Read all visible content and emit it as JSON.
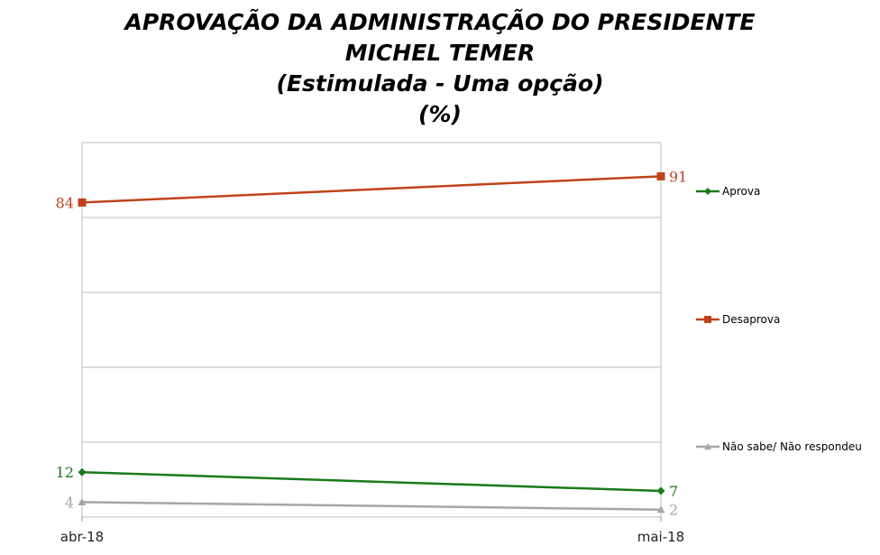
{
  "chart_data": {
    "type": "line",
    "title_lines": [
      "APROVAÇÃO DA ADMINISTRAÇÃO DO PRESIDENTE",
      "MICHEL TEMER",
      "(Estimulada - Uma opção)",
      "(%)"
    ],
    "categories": [
      "abr-18",
      "mai-18"
    ],
    "ylim": [
      0,
      100
    ],
    "grid": true,
    "legend_position": "right",
    "series": [
      {
        "name": "Aprova",
        "values": [
          12,
          7
        ],
        "color": "#1a7a1a",
        "marker": "diamond"
      },
      {
        "name": "Desaprova",
        "values": [
          84,
          91
        ],
        "color": "#c0421c",
        "marker": "square"
      },
      {
        "name": "Não sabe/ Não respondeu",
        "values": [
          4,
          2
        ],
        "color": "#a6a6a6",
        "marker": "triangle"
      }
    ]
  }
}
